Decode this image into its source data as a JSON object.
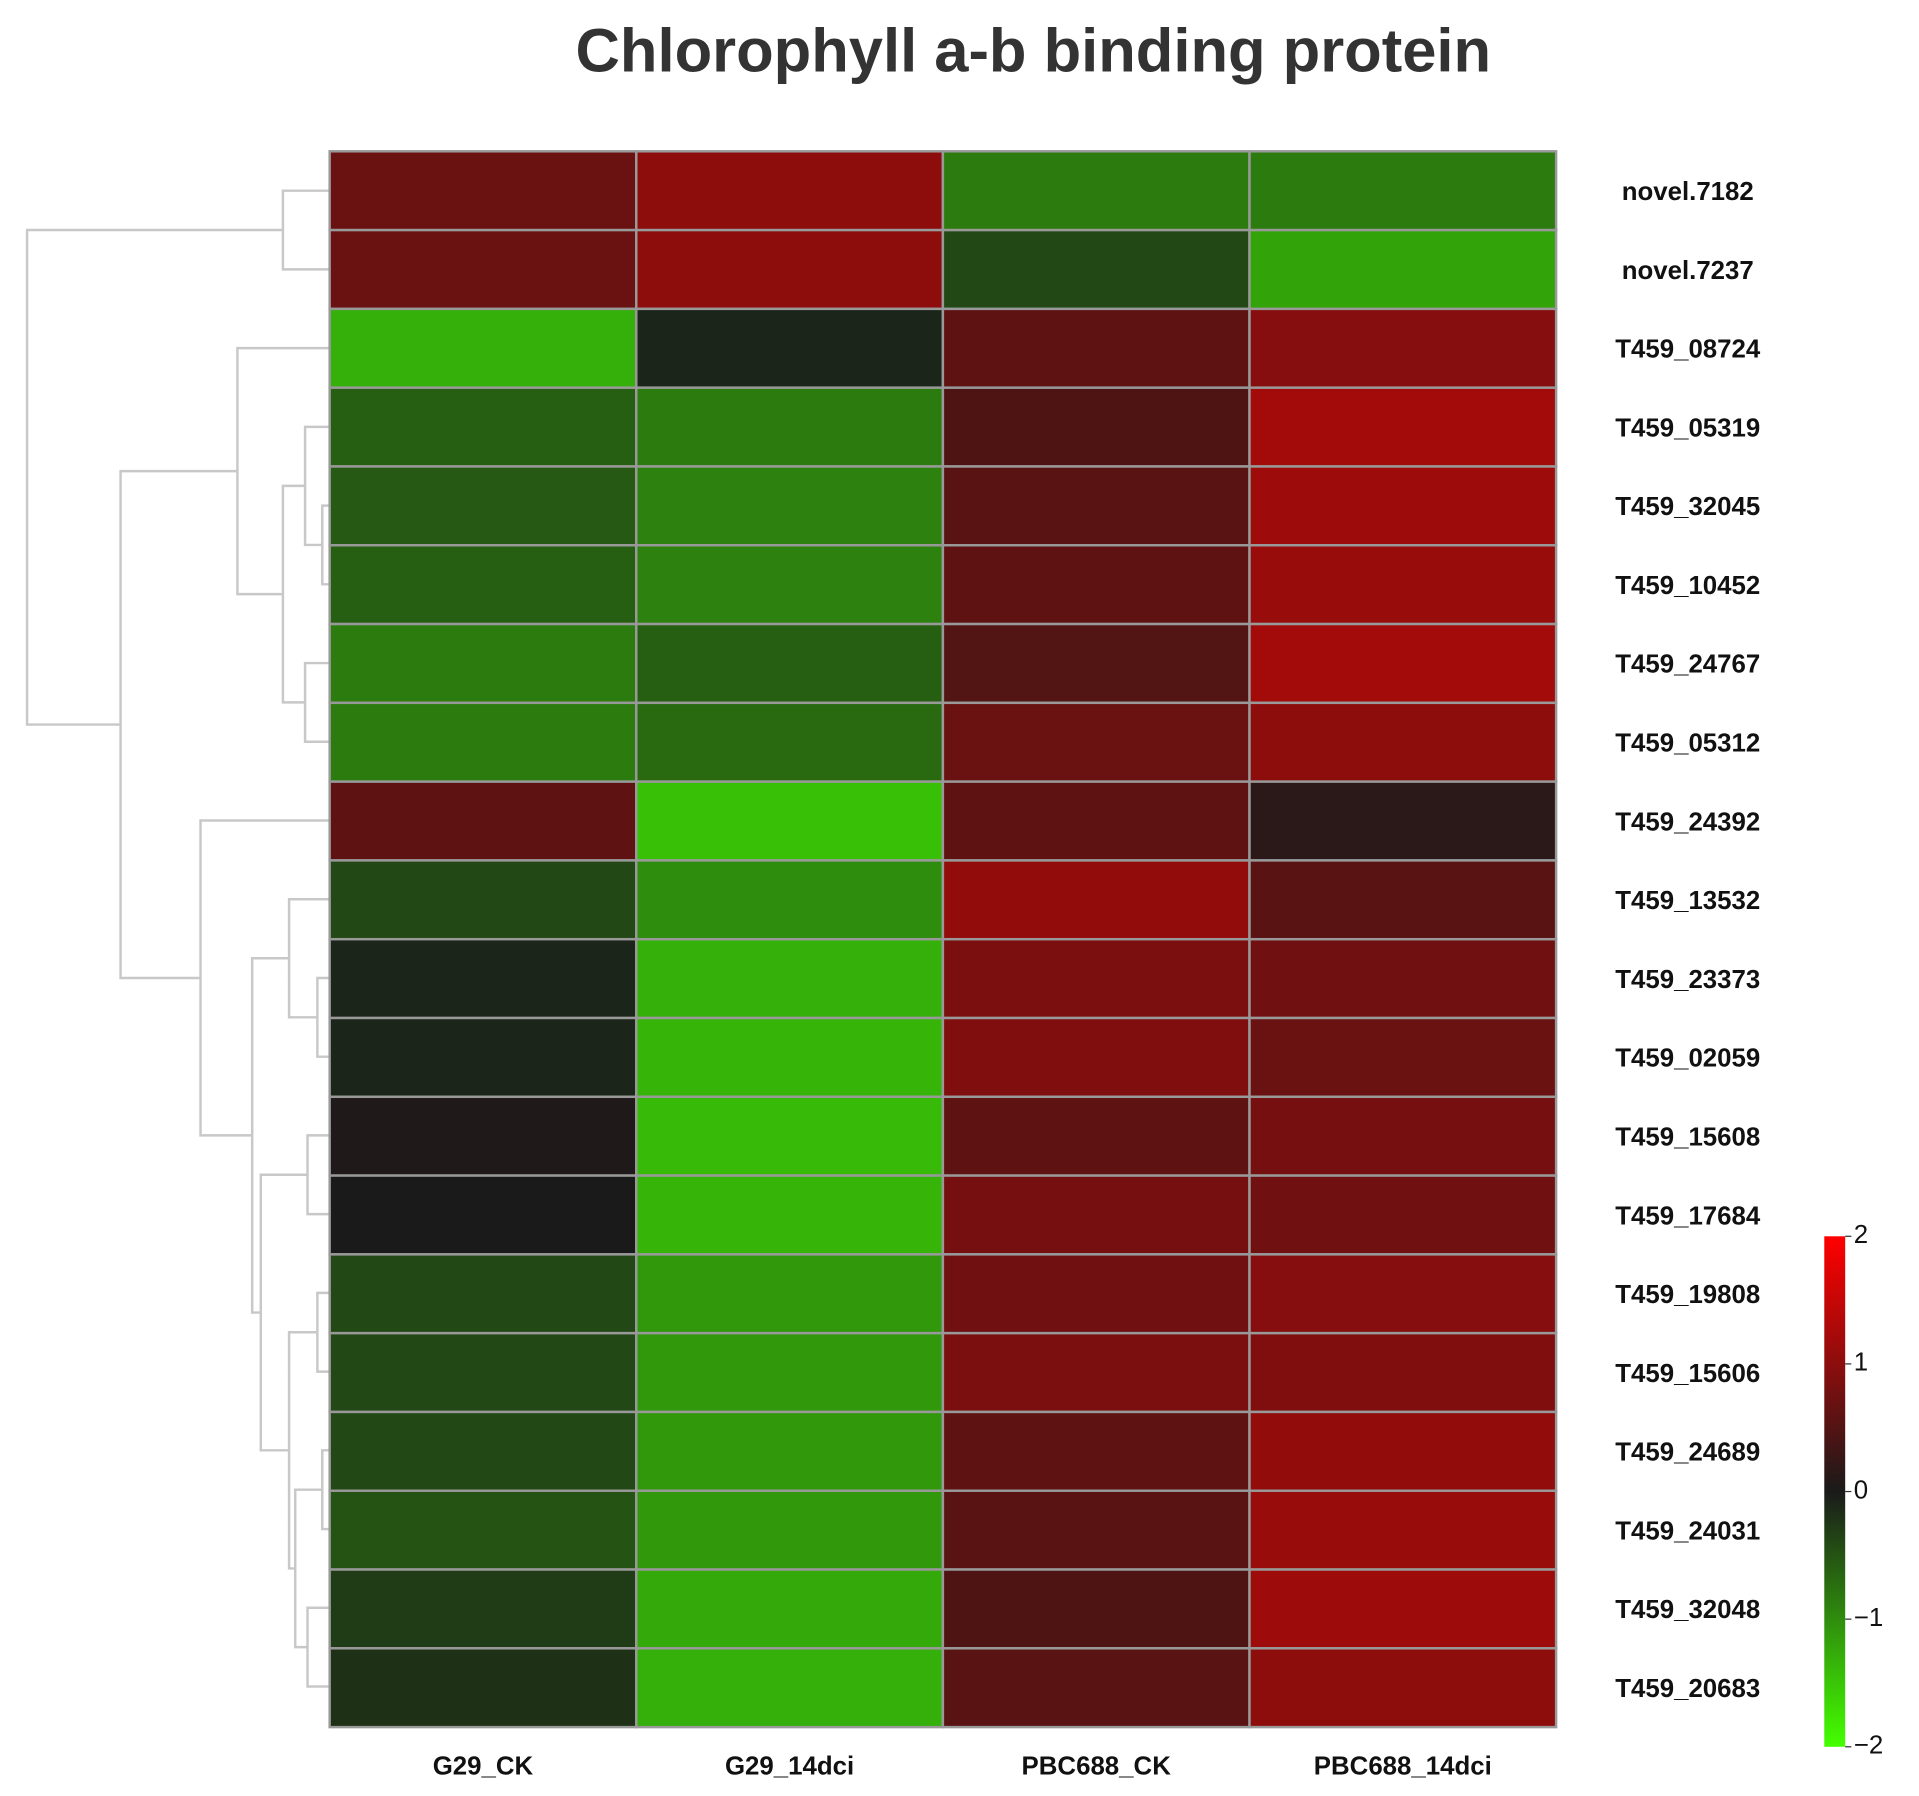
{
  "chart_data": {
    "type": "heatmap",
    "title": "Chlorophyll a-b binding protein",
    "columns": [
      "G29_CK",
      "G29_14dci",
      "PBC688_CK",
      "PBC688_14dci"
    ],
    "rows": [
      "novel.7182",
      "novel.7237",
      "T459_08724",
      "T459_05319",
      "T459_32045",
      "T459_10452",
      "T459_24767",
      "T459_05312",
      "T459_24392",
      "T459_13532",
      "T459_23373",
      "T459_02059",
      "T459_15608",
      "T459_17684",
      "T459_19808",
      "T459_15606",
      "T459_24689",
      "T459_24031",
      "T459_32048",
      "T459_20683"
    ],
    "values": [
      [
        0.7,
        1.0,
        -0.85,
        -0.85
      ],
      [
        0.7,
        1.0,
        -0.4,
        -1.2
      ],
      [
        -1.3,
        -0.1,
        0.6,
        0.95
      ],
      [
        -0.6,
        -0.85,
        0.45,
        1.2
      ],
      [
        -0.55,
        -0.9,
        0.55,
        1.15
      ],
      [
        -0.6,
        -0.9,
        0.6,
        1.1
      ],
      [
        -0.85,
        -0.6,
        0.5,
        1.2
      ],
      [
        -0.85,
        -0.7,
        0.7,
        1.0
      ],
      [
        0.6,
        -1.45,
        0.6,
        0.15
      ],
      [
        -0.4,
        -1.0,
        1.05,
        0.55
      ],
      [
        -0.1,
        -1.3,
        0.85,
        0.75
      ],
      [
        -0.1,
        -1.35,
        0.9,
        0.7
      ],
      [
        0.05,
        -1.4,
        0.6,
        0.8
      ],
      [
        0,
        -1.35,
        0.8,
        0.75
      ],
      [
        -0.4,
        -1.1,
        0.75,
        0.95
      ],
      [
        -0.4,
        -1.1,
        0.85,
        0.9
      ],
      [
        -0.4,
        -1.1,
        0.6,
        1.05
      ],
      [
        -0.5,
        -1.1,
        0.55,
        1.1
      ],
      [
        -0.3,
        -1.25,
        0.45,
        1.15
      ],
      [
        -0.2,
        -1.3,
        0.55,
        1.0
      ]
    ],
    "zlim": [
      -2,
      2
    ],
    "zticks": [
      {
        "value": -2,
        "label": "−2"
      },
      {
        "value": -1,
        "label": "−1"
      },
      0,
      1,
      2
    ],
    "colors": [
      "#44ff00",
      "#1a1a1a",
      "#ff0000"
    ]
  }
}
